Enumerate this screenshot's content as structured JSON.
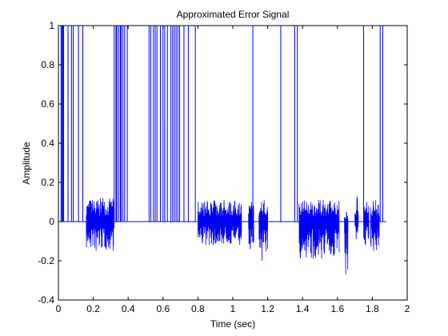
{
  "chart_data": {
    "type": "line",
    "title": "Approximated Error Signal",
    "xlabel": "Time (sec)",
    "ylabel": "Amplitude",
    "xlim": [
      0,
      2
    ],
    "ylim": [
      -0.4,
      1
    ],
    "grid": false,
    "legend": "none",
    "x_ticks": [
      0,
      0.2,
      0.4,
      0.6,
      0.8,
      1,
      1.2,
      1.4,
      1.6,
      1.8,
      2
    ],
    "x_tick_labels": [
      "0",
      "0.2",
      "0.4",
      "0.6",
      "0.8",
      "1",
      "1.2",
      "1.4",
      "1.6",
      "1.8",
      "2"
    ],
    "y_ticks": [
      -0.4,
      -0.2,
      0,
      0.2,
      0.4,
      0.6,
      0.8,
      1
    ],
    "y_tick_labels": [
      "-0.4",
      "-0.2",
      "0",
      "0.2",
      "0.4",
      "0.6",
      "0.8",
      "1"
    ],
    "series_color": "#0000ff",
    "baseline": {
      "x_start": 0.01,
      "x_end": 1.88,
      "y": 0
    },
    "spikes": [
      0.015,
      0.02,
      0.025,
      0.03,
      0.055,
      0.075,
      0.085,
      0.115,
      0.14,
      0.32,
      0.33,
      0.335,
      0.345,
      0.355,
      0.36,
      0.37,
      0.38,
      0.395,
      0.52,
      0.53,
      0.545,
      0.555,
      0.565,
      0.585,
      0.6,
      0.61,
      0.625,
      0.645,
      0.655,
      0.665,
      0.675,
      0.685,
      0.695,
      0.72,
      0.745,
      0.785,
      1.115,
      1.275,
      1.355,
      1.37,
      1.75,
      1.845,
      1.86
    ],
    "partial_spikes": [
      {
        "x": 0.61,
        "y": 0.5
      }
    ],
    "noise_bursts": [
      {
        "x_start": 0.16,
        "x_end": 0.32,
        "y_min": -0.15,
        "y_max": 0.12
      },
      {
        "x_start": 0.8,
        "x_end": 1.05,
        "y_min": -0.12,
        "y_max": 0.11
      },
      {
        "x_start": 1.09,
        "x_end": 1.12,
        "y_min": -0.14,
        "y_max": 0.1
      },
      {
        "x_start": 1.15,
        "x_end": 1.2,
        "y_min": -0.2,
        "y_max": 0.11
      },
      {
        "x_start": 1.38,
        "x_end": 1.61,
        "y_min": -0.19,
        "y_max": 0.11
      },
      {
        "x_start": 1.64,
        "x_end": 1.66,
        "y_min": -0.27,
        "y_max": 0.05
      },
      {
        "x_start": 1.7,
        "x_end": 1.72,
        "y_min": -0.09,
        "y_max": 0.13
      },
      {
        "x_start": 1.75,
        "x_end": 1.78,
        "y_min": -0.12,
        "y_max": 0.1
      },
      {
        "x_start": 1.79,
        "x_end": 1.84,
        "y_min": -0.15,
        "y_max": 0.11
      }
    ]
  }
}
